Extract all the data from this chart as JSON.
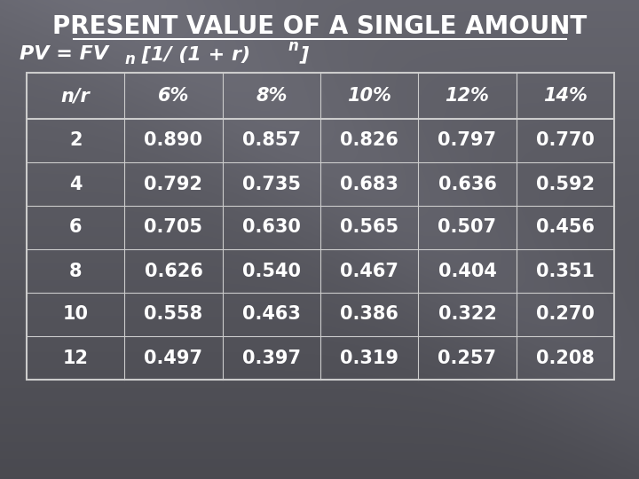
{
  "title": "PRESENT VALUE OF A SINGLE AMOUNT",
  "columns": [
    "n/r",
    "6%",
    "8%",
    "10%",
    "12%",
    "14%"
  ],
  "rows": [
    [
      "2",
      "0.890",
      "0.857",
      "0.826",
      "0.797",
      "0.770"
    ],
    [
      "4",
      "0.792",
      "0.735",
      "0.683",
      "0.636",
      "0.592"
    ],
    [
      "6",
      "0.705",
      "0.630",
      "0.565",
      "0.507",
      "0.456"
    ],
    [
      "8",
      "0.626",
      "0.540",
      "0.467",
      "0.404",
      "0.351"
    ],
    [
      "10",
      "0.558",
      "0.463",
      "0.386",
      "0.322",
      "0.270"
    ],
    [
      "12",
      "0.497",
      "0.397",
      "0.319",
      "0.257",
      "0.208"
    ]
  ],
  "text_color": "#ffffff",
  "table_border_color": "#cccccc",
  "title_fontsize": 20,
  "formula_fontsize": 16,
  "cell_fontsize": 15
}
